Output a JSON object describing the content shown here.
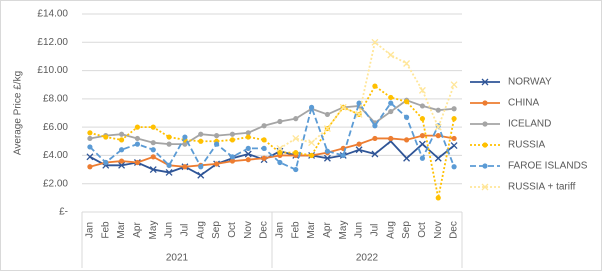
{
  "chart_data": {
    "type": "line",
    "y_label": "Average Price £/kg",
    "categories": [
      "Jan",
      "Feb",
      "Mar",
      "Apr",
      "May",
      "Jun",
      "Jul",
      "Aug",
      "Sep",
      "Oct",
      "Nov",
      "Dec",
      "Jan",
      "Feb",
      "Mar",
      "Apr",
      "May",
      "Jun",
      "Jul",
      "Aug",
      "Sep",
      "Oct",
      "Nov",
      "Dec"
    ],
    "groups": [
      "2021",
      "2022"
    ],
    "ylim": [
      0,
      14
    ],
    "yticks": [
      {
        "value": 0,
        "label": "£-"
      },
      {
        "value": 2,
        "label": "£2.00"
      },
      {
        "value": 4,
        "label": "£4.00"
      },
      {
        "value": 6,
        "label": "£6.00"
      },
      {
        "value": 8,
        "label": "£8.00"
      },
      {
        "value": 10,
        "label": "£10.00"
      },
      {
        "value": 12,
        "label": "£12.00"
      },
      {
        "value": 14,
        "label": "£14.00"
      }
    ],
    "grid": true,
    "legend": "right",
    "series": [
      {
        "name": "NORWAY",
        "color": "#2f5597",
        "dash": "solid",
        "marker": "x",
        "values": [
          3.9,
          3.3,
          3.3,
          3.5,
          3.0,
          2.8,
          3.2,
          2.6,
          3.4,
          3.8,
          4.1,
          3.7,
          4.3,
          4.0,
          4.0,
          3.8,
          4.0,
          4.4,
          4.1,
          5.0,
          3.8,
          4.8,
          3.8,
          4.7
        ]
      },
      {
        "name": "CHINA",
        "color": "#ed7d31",
        "dash": "solid",
        "marker": "circle",
        "values": [
          3.2,
          3.5,
          3.6,
          3.5,
          3.9,
          3.3,
          3.2,
          3.3,
          3.4,
          3.6,
          3.7,
          3.8,
          4.0,
          4.0,
          4.0,
          4.2,
          4.5,
          4.8,
          5.2,
          5.2,
          5.1,
          5.4,
          5.4,
          5.2
        ]
      },
      {
        "name": "ICELAND",
        "color": "#a5a5a5",
        "dash": "solid",
        "marker": "circle",
        "values": [
          5.2,
          5.4,
          5.5,
          5.2,
          4.9,
          4.8,
          4.8,
          5.5,
          5.4,
          5.5,
          5.6,
          6.1,
          6.4,
          6.6,
          7.3,
          6.9,
          7.4,
          7.5,
          6.3,
          7.1,
          7.9,
          7.5,
          7.2,
          7.3
        ]
      },
      {
        "name": "RUSSIA",
        "color": "#ffc000",
        "dash": "dotted",
        "marker": "circle",
        "values": [
          5.6,
          5.3,
          5.1,
          6.0,
          6.0,
          5.3,
          5.1,
          5.0,
          5.0,
          5.1,
          5.3,
          5.1,
          4.2,
          4.2,
          4.0,
          5.9,
          7.4,
          6.9,
          8.9,
          8.1,
          7.8,
          6.6,
          1.0,
          6.6
        ]
      },
      {
        "name": "FAROE ISLANDS",
        "color": "#5b9bd5",
        "dash": "dashed",
        "marker": "circle",
        "values": [
          4.6,
          3.5,
          4.4,
          4.8,
          4.4,
          3.3,
          5.3,
          3.2,
          4.8,
          3.9,
          4.5,
          4.5,
          3.5,
          3.0,
          7.4,
          4.3,
          4.0,
          7.7,
          6.1,
          7.7,
          6.7,
          3.8,
          6.1,
          3.2
        ]
      },
      {
        "name": "RUSSIA + tariff",
        "color": "#ffe699",
        "dash": "dotted",
        "marker": "x",
        "values": [
          null,
          null,
          null,
          null,
          null,
          null,
          null,
          null,
          null,
          null,
          null,
          null,
          4.5,
          5.2,
          4.9,
          5.9,
          7.4,
          6.9,
          12.0,
          11.1,
          10.5,
          8.6,
          6.0,
          9.0
        ]
      }
    ]
  }
}
